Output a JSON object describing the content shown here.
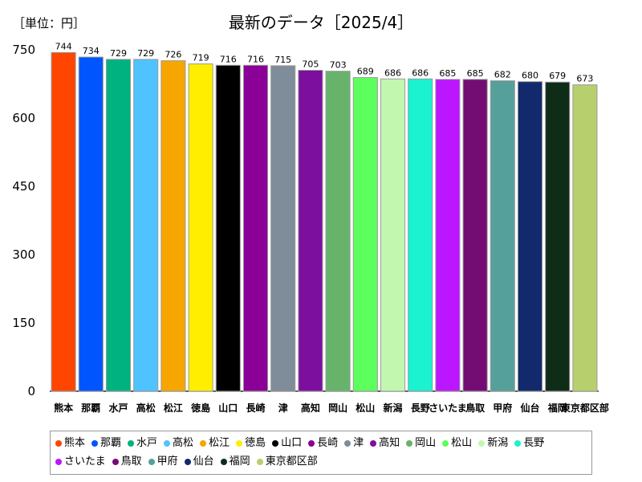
{
  "unit_label": "［単位：円］",
  "chart_data": {
    "type": "bar",
    "title": "最新のデータ［2025/4］",
    "xlabel": "",
    "ylabel": "",
    "ylim": [
      0,
      750
    ],
    "yticks": [
      0,
      150,
      300,
      450,
      600,
      750
    ],
    "grid": false,
    "legend_position": "bottom",
    "categories": [
      "熊本",
      "那覇",
      "水戸",
      "高松",
      "松江",
      "徳島",
      "山口",
      "長崎",
      "津",
      "高知",
      "岡山",
      "松山",
      "新潟",
      "長野",
      "さいたま",
      "鳥取",
      "甲府",
      "仙台",
      "福岡",
      "東京都区部"
    ],
    "axis_labels": [
      "熊本",
      "那覇",
      "水戸",
      "高松",
      "松江",
      "徳島",
      "山口",
      "長崎",
      "津",
      "高知",
      "岡山",
      "松山",
      "新潟",
      "長野",
      "さいたま",
      "鳥取",
      "甲府",
      "仙台",
      "福岡",
      "東京都区部"
    ],
    "values": [
      744,
      734,
      729,
      729,
      726,
      719,
      716,
      716,
      715,
      705,
      703,
      689,
      686,
      686,
      685,
      685,
      682,
      680,
      679,
      673
    ],
    "colors": [
      "#ff4500",
      "#0055ff",
      "#00b27f",
      "#4fc3ff",
      "#f7a600",
      "#ffee00",
      "#000000",
      "#8b0096",
      "#7f8c99",
      "#7d0f9e",
      "#68b36b",
      "#5cff5c",
      "#c2f7b0",
      "#1af2d0",
      "#bb16ff",
      "#730d73",
      "#55a09b",
      "#12296b",
      "#0e2c16",
      "#b8cf6e"
    ]
  }
}
